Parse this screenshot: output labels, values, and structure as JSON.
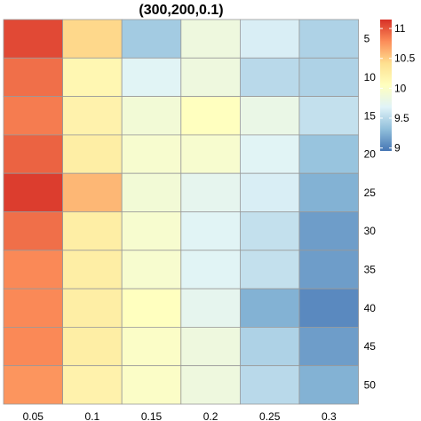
{
  "chart_data": {
    "type": "heatmap",
    "title": "(300,200,0.1)",
    "x_categories": [
      "0.05",
      "0.1",
      "0.15",
      "0.2",
      "0.25",
      "0.3"
    ],
    "y_categories": [
      "5",
      "10",
      "15",
      "20",
      "25",
      "30",
      "35",
      "40",
      "45",
      "50"
    ],
    "values": [
      [
        11.05,
        10.45,
        9.4,
        9.85,
        9.65,
        9.45
      ],
      [
        10.9,
        10.15,
        9.7,
        9.85,
        9.5,
        9.45
      ],
      [
        10.85,
        10.2,
        9.9,
        10.05,
        9.8,
        9.55
      ],
      [
        10.95,
        10.25,
        9.95,
        9.95,
        9.7,
        9.35
      ],
      [
        11.1,
        10.6,
        9.9,
        9.75,
        9.65,
        9.25
      ],
      [
        10.9,
        10.25,
        9.95,
        9.7,
        9.55,
        9.15
      ],
      [
        10.8,
        10.25,
        9.95,
        9.7,
        9.55,
        9.15
      ],
      [
        10.8,
        10.25,
        10.05,
        9.75,
        9.25,
        9.05
      ],
      [
        10.8,
        10.25,
        10.0,
        9.85,
        9.45,
        9.15
      ],
      [
        10.75,
        10.2,
        10.0,
        9.85,
        9.5,
        9.25
      ]
    ],
    "colorbar": {
      "ticks": [
        "9",
        "9.5",
        "10",
        "10.5",
        "11"
      ],
      "tick_values": [
        9,
        9.5,
        10,
        10.5,
        11
      ],
      "range": [
        8.95,
        11.15
      ],
      "palette": [
        "#4575B4",
        "#91BFDB",
        "#E0F3F8",
        "#FFFFBF",
        "#FEE090",
        "#FC8D59",
        "#D73027"
      ]
    },
    "grid": true,
    "legend": "right"
  }
}
